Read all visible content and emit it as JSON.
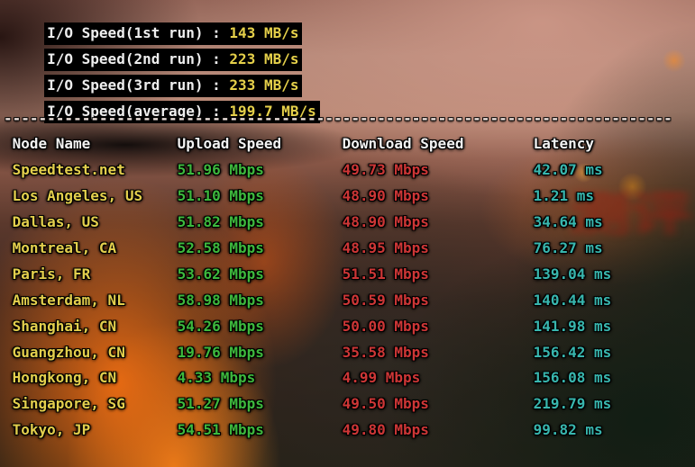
{
  "io_section": {
    "lines": [
      {
        "label": "I/O Speed(1st run)",
        "separator": " : ",
        "value": "143 MB/s"
      },
      {
        "label": "I/O Speed(2nd run)",
        "separator": " : ",
        "value": "223 MB/s"
      },
      {
        "label": "I/O Speed(3rd run)",
        "separator": " : ",
        "value": "233 MB/s"
      },
      {
        "label": "I/O Speed(average)",
        "separator": " : ",
        "value": "199.7 MB/s"
      }
    ]
  },
  "separator_line": "-----------------------------------------------------------------------------",
  "table": {
    "headers": {
      "node": "Node Name",
      "upload": "Upload Speed",
      "download": "Download Speed",
      "latency": "Latency"
    },
    "rows": [
      {
        "node": "Speedtest.net",
        "upload": "51.96 Mbps",
        "download": "49.73 Mbps",
        "latency": "42.07 ms"
      },
      {
        "node": "Los Angeles, US",
        "upload": "51.10 Mbps",
        "download": "48.90 Mbps",
        "latency": "1.21 ms"
      },
      {
        "node": "Dallas, US",
        "upload": "51.82 Mbps",
        "download": "48.90 Mbps",
        "latency": "34.64 ms"
      },
      {
        "node": "Montreal, CA",
        "upload": "52.58 Mbps",
        "download": "48.95 Mbps",
        "latency": "76.27 ms"
      },
      {
        "node": "Paris, FR",
        "upload": "53.62 Mbps",
        "download": "51.51 Mbps",
        "latency": "139.04 ms"
      },
      {
        "node": "Amsterdam, NL",
        "upload": "58.98 Mbps",
        "download": "50.59 Mbps",
        "latency": "140.44 ms"
      },
      {
        "node": "Shanghai, CN",
        "upload": "54.26 Mbps",
        "download": "50.00 Mbps",
        "latency": "141.98 ms"
      },
      {
        "node": "Guangzhou, CN",
        "upload": "19.76 Mbps",
        "download": "35.58 Mbps",
        "latency": "156.42 ms"
      },
      {
        "node": "Hongkong, CN",
        "upload": "4.33 Mbps",
        "download": "4.99 Mbps",
        "latency": "156.08 ms"
      },
      {
        "node": "Singapore, SG",
        "upload": "51.27 Mbps",
        "download": "49.50 Mbps",
        "latency": "219.79 ms"
      },
      {
        "node": "Tokyo, JP",
        "upload": "54.51 Mbps",
        "download": "49.80 Mbps",
        "latency": "99.82 ms"
      }
    ]
  },
  "watermark": "测评",
  "colors": {
    "io_value_yellow": "#e5d04a",
    "node_yellow": "#e3cf4d",
    "upload_green": "#3db83d",
    "download_red": "#cd3636",
    "latency_cyan": "#38b6ae",
    "text_white": "#eeeeee",
    "bar_background": "#000000"
  }
}
